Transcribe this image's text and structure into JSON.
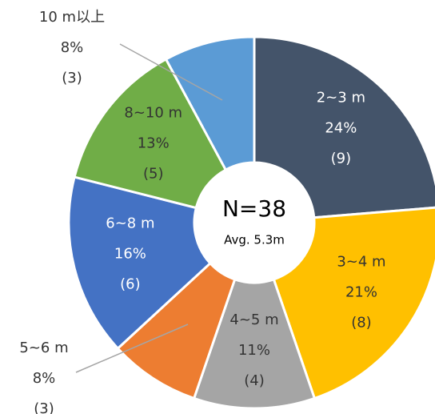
{
  "chart_data": {
    "type": "donut",
    "categories": [
      "2~3 m",
      "3~4 m",
      "4~5 m",
      "5~6 m",
      "6~8 m",
      "8~10 m",
      "10 m以上"
    ],
    "values": [
      24,
      21,
      11,
      8,
      16,
      13,
      8
    ],
    "value_labels": [
      "24%",
      "21%",
      "11%",
      "8%",
      "16%",
      "13%",
      "8%"
    ],
    "counts": [
      9,
      8,
      4,
      3,
      6,
      5,
      3
    ],
    "count_labels": [
      "(9)",
      "(8)",
      "(4)",
      "(3)",
      "(6)",
      "(5)",
      "(3)"
    ],
    "colors": [
      "#44546a",
      "#ffc000",
      "#a5a5a5",
      "#ed7d31",
      "#4472c4",
      "#70ad47",
      "#5b9bd5"
    ],
    "center_title": "N=38",
    "center_subtitle": "Avg. 5.3m"
  }
}
